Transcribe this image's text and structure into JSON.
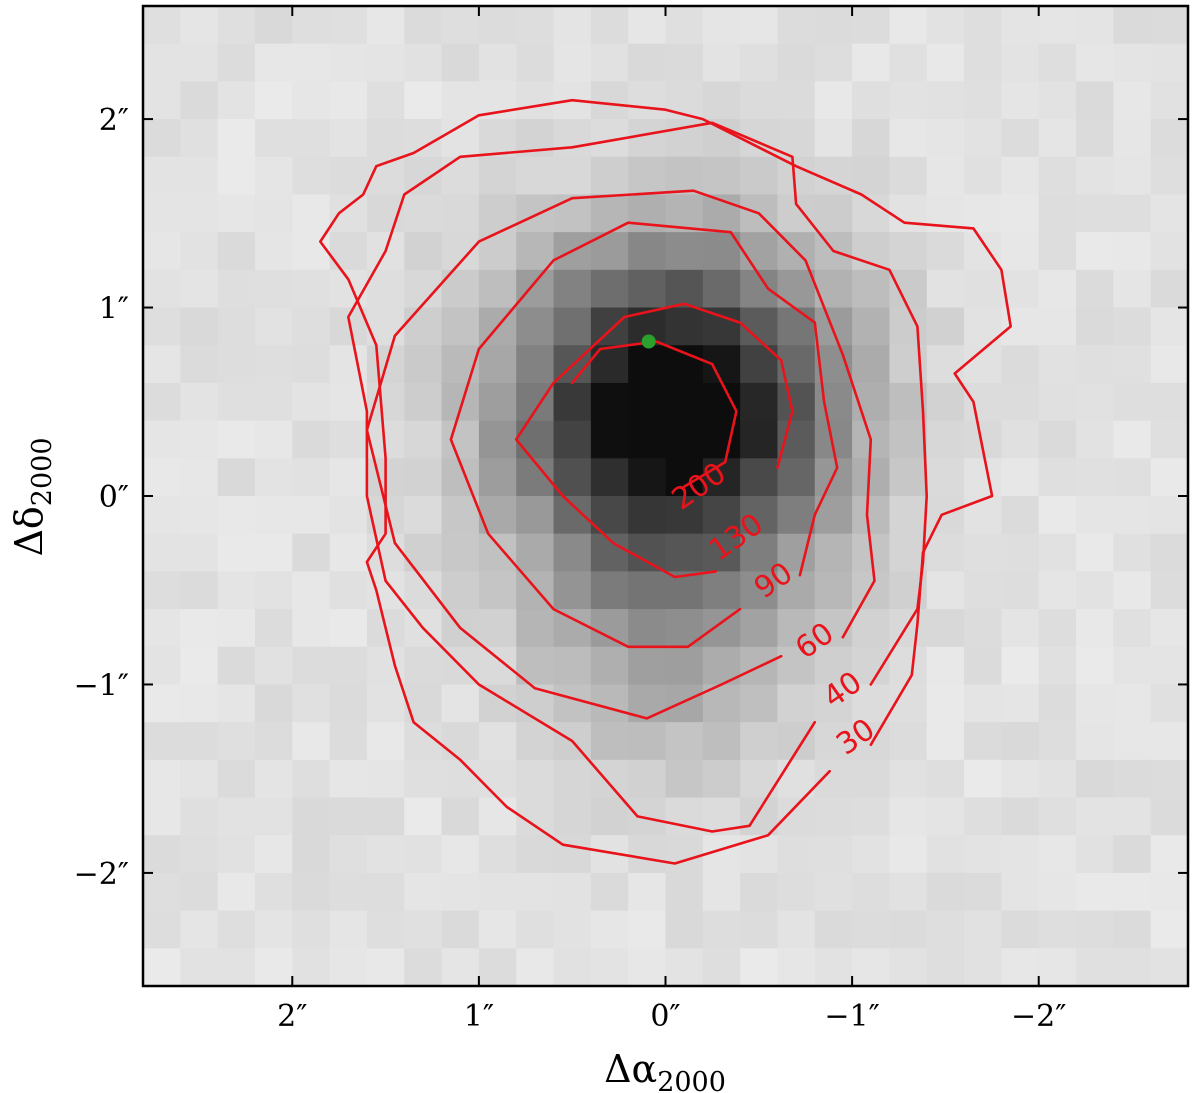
{
  "chart_data": {
    "type": "heatmap",
    "title": "",
    "xlabel": {
      "base": "Δα",
      "sub": "2000"
    },
    "ylabel": {
      "base": "Δδ",
      "sub": "2000"
    },
    "xlim": [
      2.8,
      -2.8
    ],
    "ylim": [
      -2.6,
      2.6
    ],
    "x_ticks": [
      {
        "value": 2,
        "label": "2″"
      },
      {
        "value": 1,
        "label": "1″"
      },
      {
        "value": 0,
        "label": "0″"
      },
      {
        "value": -1,
        "label": "−1″"
      },
      {
        "value": -2,
        "label": "−2″"
      }
    ],
    "y_ticks": [
      {
        "value": 2,
        "label": "2″"
      },
      {
        "value": 1,
        "label": "1″"
      },
      {
        "value": 0,
        "label": "0″"
      },
      {
        "value": -1,
        "label": "−1″"
      },
      {
        "value": -2,
        "label": "−2″"
      }
    ],
    "grid": false,
    "colormap": "gray_r",
    "contour_color": "#e8131b",
    "marker_color": "#2ca02c",
    "image": {
      "rows": 26,
      "cols": 28,
      "extent_x": [
        2.8,
        -2.8
      ],
      "extent_y": [
        2.6,
        -2.6
      ],
      "source": {
        "center_x": -0.05,
        "center_y": 0.45,
        "peak": 255,
        "sigma": 0.6,
        "background": 22,
        "noise": 18
      },
      "extension": {
        "center_x": 0.0,
        "center_y": -0.8,
        "amplitude": 55,
        "sigma": 0.5
      }
    },
    "contours": [
      {
        "level": 200,
        "label": "200",
        "label_at": [
          -0.18,
          0.05
        ],
        "points": [
          [
            0.5,
            0.6
          ],
          [
            0.35,
            0.78
          ],
          [
            0.05,
            0.82
          ],
          [
            -0.25,
            0.7
          ],
          [
            -0.38,
            0.45
          ],
          [
            -0.32,
            0.18
          ],
          [
            -0.1,
            0.05
          ]
        ]
      },
      {
        "level": 130,
        "label": "130",
        "label_at": [
          -0.38,
          -0.22
        ],
        "points": [
          [
            -0.27,
            -0.4
          ],
          [
            -0.05,
            -0.43
          ],
          [
            0.28,
            -0.25
          ],
          [
            0.55,
            0.0
          ],
          [
            0.8,
            0.3
          ],
          [
            0.6,
            0.6
          ],
          [
            0.22,
            0.95
          ],
          [
            -0.1,
            1.02
          ],
          [
            -0.4,
            0.92
          ],
          [
            -0.62,
            0.72
          ],
          [
            -0.68,
            0.45
          ],
          [
            -0.6,
            0.15
          ]
        ]
      },
      {
        "level": 90,
        "label": "90",
        "label_at": [
          -0.58,
          -0.45
        ],
        "points": [
          [
            -0.4,
            -0.6
          ],
          [
            -0.12,
            -0.8
          ],
          [
            0.2,
            -0.8
          ],
          [
            0.6,
            -0.6
          ],
          [
            0.95,
            -0.2
          ],
          [
            1.15,
            0.3
          ],
          [
            1.0,
            0.78
          ],
          [
            0.6,
            1.25
          ],
          [
            0.2,
            1.45
          ],
          [
            -0.35,
            1.4
          ],
          [
            -0.55,
            1.1
          ],
          [
            -0.8,
            0.92
          ],
          [
            -0.85,
            0.5
          ],
          [
            -0.92,
            0.15
          ],
          [
            -0.8,
            -0.1
          ],
          [
            -0.72,
            -0.42
          ]
        ]
      },
      {
        "level": 60,
        "label": "60",
        "label_at": [
          -0.8,
          -0.77
        ],
        "points": [
          [
            -0.62,
            -0.85
          ],
          [
            -0.3,
            -1.0
          ],
          [
            0.1,
            -1.18
          ],
          [
            0.7,
            -1.02
          ],
          [
            1.1,
            -0.7
          ],
          [
            1.45,
            -0.25
          ],
          [
            1.6,
            0.35
          ],
          [
            1.45,
            0.85
          ],
          [
            1.0,
            1.35
          ],
          [
            0.5,
            1.58
          ],
          [
            -0.15,
            1.62
          ],
          [
            -0.5,
            1.5
          ],
          [
            -0.75,
            1.25
          ],
          [
            -0.95,
            0.75
          ],
          [
            -1.1,
            0.3
          ],
          [
            -1.08,
            -0.1
          ],
          [
            -1.12,
            -0.45
          ],
          [
            -0.95,
            -0.75
          ]
        ]
      },
      {
        "level": 40,
        "label": "40",
        "label_at": [
          -0.95,
          -1.03
        ],
        "points": [
          [
            -0.8,
            -1.2
          ],
          [
            -0.45,
            -1.75
          ],
          [
            -0.25,
            -1.78
          ],
          [
            0.15,
            -1.7
          ],
          [
            0.5,
            -1.3
          ],
          [
            1.0,
            -1.0
          ],
          [
            1.3,
            -0.7
          ],
          [
            1.5,
            -0.45
          ],
          [
            1.6,
            0.0
          ],
          [
            1.6,
            0.45
          ],
          [
            1.7,
            0.95
          ],
          [
            1.5,
            1.3
          ],
          [
            1.4,
            1.6
          ],
          [
            1.1,
            1.8
          ],
          [
            0.5,
            1.85
          ],
          [
            -0.25,
            1.98
          ],
          [
            -0.68,
            1.8
          ],
          [
            -0.7,
            1.55
          ],
          [
            -0.9,
            1.3
          ],
          [
            -1.2,
            1.2
          ],
          [
            -1.35,
            0.9
          ],
          [
            -1.38,
            0.45
          ],
          [
            -1.4,
            0.0
          ],
          [
            -1.38,
            -0.35
          ],
          [
            -1.35,
            -0.6
          ],
          [
            -1.1,
            -1.0
          ]
        ]
      },
      {
        "level": 30,
        "label": "30",
        "label_at": [
          -1.02,
          -1.28
        ],
        "points": [
          [
            -0.88,
            -1.46
          ],
          [
            -0.55,
            -1.8
          ],
          [
            -0.05,
            -1.95
          ],
          [
            0.55,
            -1.85
          ],
          [
            0.85,
            -1.65
          ],
          [
            1.1,
            -1.4
          ],
          [
            1.35,
            -1.2
          ],
          [
            1.45,
            -0.9
          ],
          [
            1.55,
            -0.5
          ],
          [
            1.6,
            -0.35
          ],
          [
            1.5,
            -0.2
          ],
          [
            1.5,
            0.2
          ],
          [
            1.55,
            0.8
          ],
          [
            1.7,
            1.15
          ],
          [
            1.85,
            1.35
          ],
          [
            1.75,
            1.5
          ],
          [
            1.62,
            1.6
          ],
          [
            1.55,
            1.75
          ],
          [
            1.35,
            1.82
          ],
          [
            1.0,
            2.02
          ],
          [
            0.5,
            2.1
          ],
          [
            0.0,
            2.05
          ],
          [
            -0.2,
            2.0
          ],
          [
            -0.7,
            1.75
          ],
          [
            -1.05,
            1.6
          ],
          [
            -1.28,
            1.45
          ],
          [
            -1.65,
            1.42
          ],
          [
            -1.8,
            1.2
          ],
          [
            -1.85,
            0.9
          ],
          [
            -1.55,
            0.65
          ],
          [
            -1.65,
            0.5
          ],
          [
            -1.72,
            0.15
          ],
          [
            -1.75,
            0.0
          ],
          [
            -1.48,
            -0.1
          ],
          [
            -1.38,
            -0.3
          ],
          [
            -1.35,
            -0.68
          ],
          [
            -1.32,
            -0.95
          ],
          [
            -1.1,
            -1.32
          ]
        ]
      }
    ],
    "marker": {
      "x": 0.09,
      "y": 0.82
    }
  }
}
